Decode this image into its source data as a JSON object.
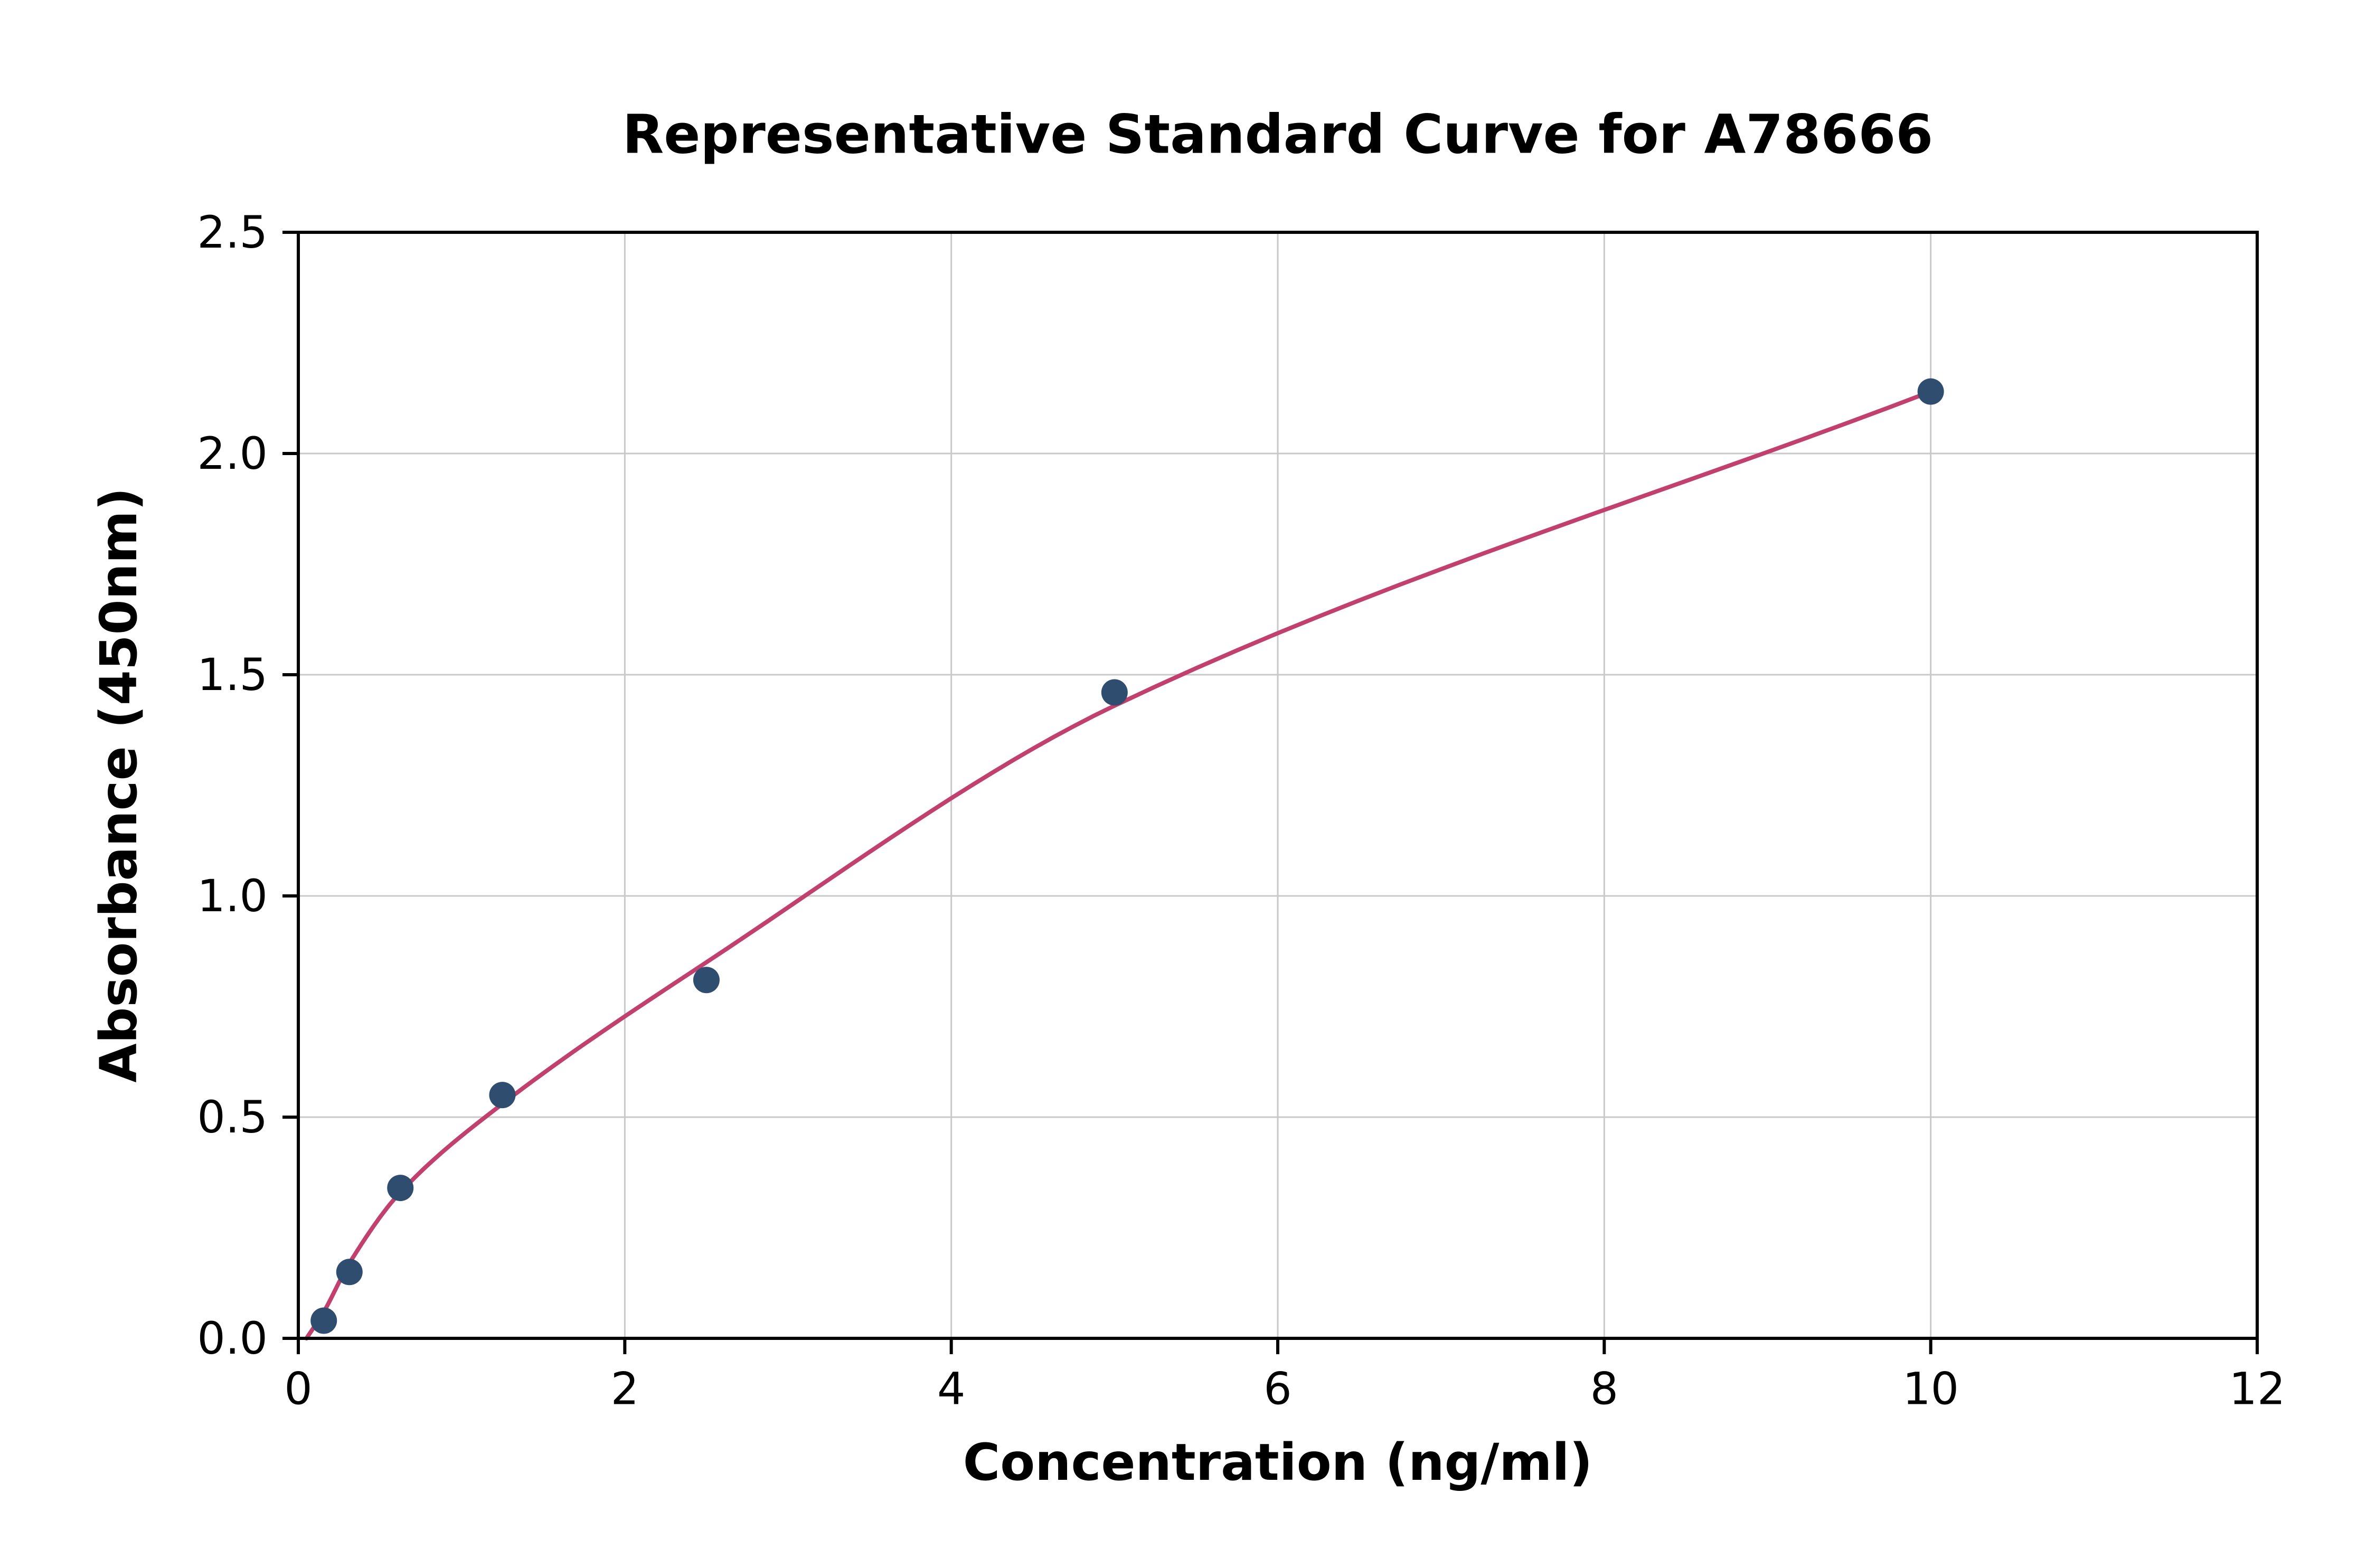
{
  "chart_data": {
    "type": "scatter",
    "title": "Representative Standard Curve for A78666",
    "xlabel": "Concentration (ng/ml)",
    "ylabel": "Absorbance (450nm)",
    "xlim": [
      0,
      12
    ],
    "ylim": [
      0,
      2.5
    ],
    "xticks": [
      0,
      2,
      4,
      6,
      8,
      10,
      12
    ],
    "xtick_labels": [
      "0",
      "2",
      "4",
      "6",
      "8",
      "10",
      "12"
    ],
    "yticks": [
      0,
      0.5,
      1.0,
      1.5,
      2.0,
      2.5
    ],
    "ytick_labels": [
      "0.0",
      "0.5",
      "1.0",
      "1.5",
      "2.0",
      "2.5"
    ],
    "grid": true,
    "grid_color": "#c9c9c9",
    "axis_color": "#000000",
    "dot_color": "#2f4d6e",
    "curve_color": "#c2406e",
    "points": [
      {
        "x": 0.156,
        "y": 0.04
      },
      {
        "x": 0.313,
        "y": 0.15
      },
      {
        "x": 0.625,
        "y": 0.34
      },
      {
        "x": 1.25,
        "y": 0.55
      },
      {
        "x": 2.5,
        "y": 0.81
      },
      {
        "x": 5.0,
        "y": 1.46
      },
      {
        "x": 10.0,
        "y": 2.14
      }
    ],
    "curve_points": [
      [
        0.05,
        0.0
      ],
      [
        0.156,
        0.06
      ],
      [
        0.313,
        0.17
      ],
      [
        0.625,
        0.33
      ],
      [
        1.25,
        0.53
      ],
      [
        2.5,
        0.85
      ],
      [
        5.0,
        1.43
      ],
      [
        10.0,
        2.14
      ]
    ]
  }
}
